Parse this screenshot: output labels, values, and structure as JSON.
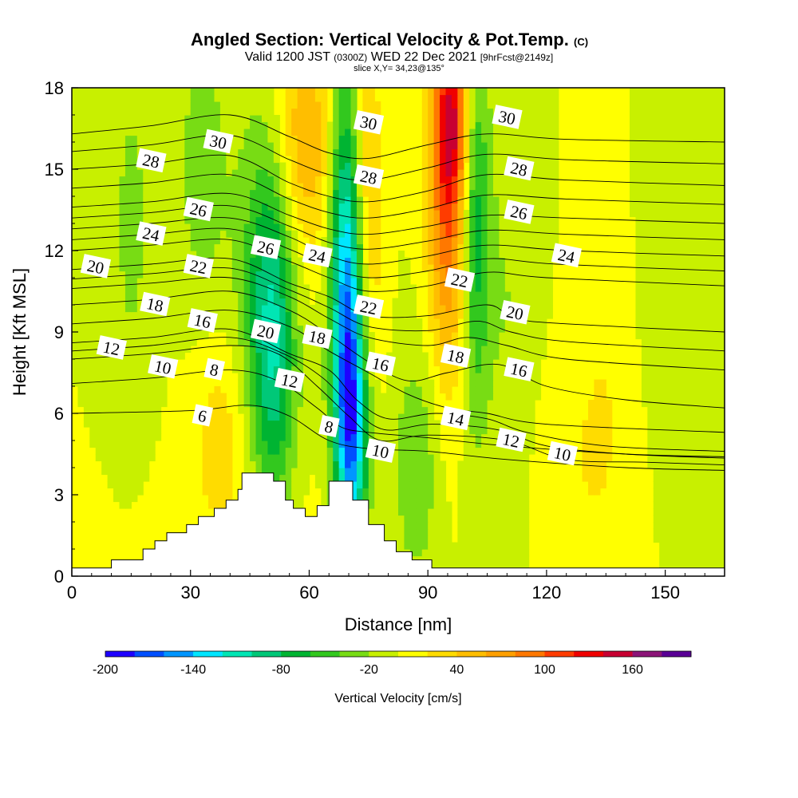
{
  "chart_data": {
    "type": "heatmap",
    "title": "Angled Section: Vertical Velocity & Pot.Temp.",
    "title_suffix": "(C)",
    "subtitle_parts": [
      "Valid 1200 JST",
      "(0300Z)",
      "WED 22 Dec 2021",
      "[9hrFcst@2149z]"
    ],
    "slice_line": "slice X,Y= 34,23@135°",
    "xlabel": "Distance [nm]",
    "ylabel": "Height [Kft MSL]",
    "xlim": [
      0,
      165
    ],
    "ylim": [
      0,
      18
    ],
    "x_ticks": [
      0,
      30,
      60,
      90,
      120,
      150
    ],
    "y_ticks": [
      0,
      3,
      6,
      9,
      12,
      15,
      18
    ],
    "colorbar": {
      "title": "Vertical Velocity [cm/s]",
      "min": -200,
      "max": 200,
      "step": 20,
      "tick_labels": [
        -200,
        -140,
        -80,
        -20,
        40,
        100,
        160
      ],
      "colors": [
        "#1e00ff",
        "#0050ff",
        "#0096ff",
        "#00e6ff",
        "#00e6b4",
        "#00c878",
        "#00b432",
        "#32c81e",
        "#78dc14",
        "#c8f000",
        "#ffff00",
        "#ffdc00",
        "#ffbe00",
        "#ffa000",
        "#ff7800",
        "#ff3c00",
        "#f00000",
        "#c80032",
        "#8c1478",
        "#5a0096"
      ]
    },
    "background_value": 0,
    "terrain_profile": [
      [
        0,
        0.3
      ],
      [
        10,
        0.3
      ],
      [
        10,
        0.6
      ],
      [
        18,
        0.6
      ],
      [
        18,
        1.0
      ],
      [
        21,
        1.0
      ],
      [
        21,
        1.3
      ],
      [
        24,
        1.3
      ],
      [
        24,
        1.6
      ],
      [
        29,
        1.6
      ],
      [
        29,
        1.9
      ],
      [
        32,
        1.9
      ],
      [
        32,
        2.2
      ],
      [
        36,
        2.2
      ],
      [
        36,
        2.5
      ],
      [
        39,
        2.5
      ],
      [
        39,
        2.8
      ],
      [
        42,
        2.8
      ],
      [
        42,
        3.2
      ],
      [
        43,
        3.2
      ],
      [
        43,
        3.8
      ],
      [
        51,
        3.8
      ],
      [
        51,
        3.5
      ],
      [
        54,
        3.5
      ],
      [
        54,
        2.8
      ],
      [
        56,
        2.8
      ],
      [
        56,
        2.5
      ],
      [
        59,
        2.5
      ],
      [
        59,
        2.2
      ],
      [
        62,
        2.2
      ],
      [
        62,
        2.6
      ],
      [
        65,
        2.6
      ],
      [
        65,
        3.5
      ],
      [
        71,
        3.5
      ],
      [
        71,
        2.8
      ],
      [
        75,
        2.8
      ],
      [
        75,
        1.9
      ],
      [
        79,
        1.9
      ],
      [
        79,
        1.3
      ],
      [
        82,
        1.3
      ],
      [
        82,
        0.9
      ],
      [
        86,
        0.9
      ],
      [
        86,
        0.6
      ],
      [
        91,
        0.6
      ],
      [
        91,
        0.3
      ],
      [
        165,
        0.3
      ]
    ],
    "velocity_features": [
      {
        "x": 51,
        "y": 8.5,
        "sx": 4,
        "sy": 4.5,
        "value": -80
      },
      {
        "x": 48,
        "y": 11,
        "sx": 5,
        "sy": 5,
        "value": -40
      },
      {
        "x": 70,
        "y": 9,
        "sx": 3,
        "sy": 4.5,
        "value": -140
      },
      {
        "x": 71,
        "y": 5,
        "sx": 3,
        "sy": 3,
        "value": -100
      },
      {
        "x": 69,
        "y": 15,
        "sx": 3,
        "sy": 4,
        "value": -60
      },
      {
        "x": 74,
        "y": 13,
        "sx": 3,
        "sy": 5,
        "value": 60
      },
      {
        "x": 59,
        "y": 16,
        "sx": 6,
        "sy": 3,
        "value": 60
      },
      {
        "x": 38,
        "y": 5.5,
        "sx": 6,
        "sy": 2.5,
        "value": 30
      },
      {
        "x": 95,
        "y": 14,
        "sx": 3.5,
        "sy": 4.5,
        "value": 100
      },
      {
        "x": 96,
        "y": 17,
        "sx": 3,
        "sy": 2,
        "value": 80
      },
      {
        "x": 102,
        "y": 13,
        "sx": 2.5,
        "sy": 5,
        "value": -70
      },
      {
        "x": 87,
        "y": 4,
        "sx": 4,
        "sy": 3,
        "value": -40
      },
      {
        "x": 33,
        "y": 15,
        "sx": 5,
        "sy": 4,
        "value": -30
      },
      {
        "x": 15,
        "y": 13,
        "sx": 4,
        "sy": 5,
        "value": -25
      },
      {
        "x": 110,
        "y": 10,
        "sx": 5,
        "sy": 5,
        "value": -20
      },
      {
        "x": 135,
        "y": 9,
        "sx": 5,
        "sy": 6,
        "value": 15
      },
      {
        "x": 128,
        "y": 4,
        "sx": 8,
        "sy": 3,
        "value": 15
      },
      {
        "x": 150,
        "y": 13,
        "sx": 6,
        "sy": 5,
        "value": -12
      },
      {
        "x": 45,
        "y": 1.5,
        "sx": 20,
        "sy": 2,
        "value": 10
      }
    ],
    "isentropes": [
      {
        "theta": 6,
        "points": [
          [
            0,
            6.0
          ],
          [
            30,
            6.1
          ],
          [
            45,
            6.3
          ],
          [
            55,
            5.9
          ],
          [
            65,
            5.0
          ],
          [
            75,
            4.7
          ],
          [
            90,
            4.6
          ],
          [
            110,
            4.3
          ],
          [
            140,
            4.0
          ],
          [
            165,
            3.9
          ]
        ]
      },
      {
        "theta": 8,
        "points": [
          [
            0,
            7.1
          ],
          [
            20,
            7.3
          ],
          [
            40,
            7.6
          ],
          [
            52,
            7.2
          ],
          [
            62,
            6.2
          ],
          [
            68,
            5.5
          ],
          [
            75,
            5.3
          ],
          [
            90,
            5.1
          ],
          [
            110,
            4.8
          ],
          [
            140,
            4.5
          ],
          [
            165,
            4.4
          ]
        ]
      },
      {
        "theta": 10,
        "points": [
          [
            0,
            8.0
          ],
          [
            20,
            8.2
          ],
          [
            40,
            8.5
          ],
          [
            52,
            8.2
          ],
          [
            62,
            7.0
          ],
          [
            70,
            5.9
          ],
          [
            78,
            5.0
          ],
          [
            90,
            5.2
          ],
          [
            110,
            5.0
          ],
          [
            125,
            4.3
          ],
          [
            145,
            4.2
          ],
          [
            165,
            4.1
          ]
        ]
      },
      {
        "theta": 12,
        "points": [
          [
            0,
            8.6
          ],
          [
            20,
            8.8
          ],
          [
            40,
            9.1
          ],
          [
            55,
            8.2
          ],
          [
            65,
            7.6
          ],
          [
            72,
            6.5
          ],
          [
            80,
            5.8
          ],
          [
            92,
            6.0
          ],
          [
            105,
            5.8
          ],
          [
            115,
            5.3
          ],
          [
            135,
            4.8
          ],
          [
            165,
            4.6
          ]
        ]
      },
      {
        "theta": 14,
        "points": [
          [
            0,
            9.3
          ],
          [
            20,
            9.5
          ],
          [
            40,
            9.8
          ],
          [
            55,
            9.2
          ],
          [
            65,
            8.3
          ],
          [
            75,
            7.5
          ],
          [
            85,
            6.7
          ],
          [
            95,
            6.2
          ],
          [
            105,
            6.0
          ],
          [
            120,
            5.6
          ],
          [
            165,
            5.3
          ]
        ]
      },
      {
        "theta": 16,
        "points": [
          [
            0,
            10.0
          ],
          [
            20,
            10.2
          ],
          [
            40,
            10.5
          ],
          [
            55,
            9.8
          ],
          [
            65,
            8.9
          ],
          [
            75,
            7.9
          ],
          [
            85,
            7.2
          ],
          [
            95,
            7.5
          ],
          [
            108,
            7.8
          ],
          [
            120,
            7.0
          ],
          [
            140,
            6.5
          ],
          [
            165,
            6.2
          ]
        ]
      },
      {
        "theta": 18,
        "points": [
          [
            0,
            10.6
          ],
          [
            20,
            10.8
          ],
          [
            40,
            11.0
          ],
          [
            55,
            10.3
          ],
          [
            65,
            9.5
          ],
          [
            75,
            8.8
          ],
          [
            90,
            8.5
          ],
          [
            100,
            8.8
          ],
          [
            110,
            8.5
          ],
          [
            125,
            8.0
          ],
          [
            165,
            7.6
          ]
        ]
      },
      {
        "theta": 20,
        "points": [
          [
            0,
            11.3
          ],
          [
            20,
            11.5
          ],
          [
            40,
            11.7
          ],
          [
            55,
            10.8
          ],
          [
            65,
            10.3
          ],
          [
            75,
            9.6
          ],
          [
            90,
            9.6
          ],
          [
            105,
            10.0
          ],
          [
            112,
            9.5
          ],
          [
            125,
            9.3
          ],
          [
            165,
            9.0
          ]
        ]
      },
      {
        "theta": 22,
        "points": [
          [
            0,
            12.0
          ],
          [
            20,
            12.2
          ],
          [
            40,
            12.4
          ],
          [
            55,
            11.6
          ],
          [
            65,
            11.0
          ],
          [
            75,
            10.5
          ],
          [
            90,
            10.7
          ],
          [
            105,
            11.2
          ],
          [
            120,
            11.0
          ],
          [
            165,
            10.7
          ]
        ]
      },
      {
        "theta": 24,
        "points": [
          [
            0,
            12.8
          ],
          [
            20,
            13.0
          ],
          [
            40,
            13.2
          ],
          [
            55,
            12.5
          ],
          [
            65,
            11.8
          ],
          [
            75,
            11.5
          ],
          [
            90,
            11.8
          ],
          [
            105,
            12.2
          ],
          [
            125,
            12.0
          ],
          [
            165,
            11.8
          ]
        ]
      },
      {
        "theta": 26,
        "points": [
          [
            0,
            13.6
          ],
          [
            20,
            13.8
          ],
          [
            40,
            14.1
          ],
          [
            55,
            13.3
          ],
          [
            65,
            12.8
          ],
          [
            75,
            12.6
          ],
          [
            90,
            12.9
          ],
          [
            105,
            13.3
          ],
          [
            125,
            13.2
          ],
          [
            165,
            13.0
          ]
        ]
      },
      {
        "theta": 28,
        "points": [
          [
            0,
            15.0
          ],
          [
            20,
            15.2
          ],
          [
            40,
            15.5
          ],
          [
            55,
            14.5
          ],
          [
            65,
            14.0
          ],
          [
            75,
            13.8
          ],
          [
            90,
            14.2
          ],
          [
            105,
            14.8
          ],
          [
            125,
            14.6
          ],
          [
            165,
            14.4
          ]
        ]
      },
      {
        "theta": 30,
        "points": [
          [
            0,
            16.3
          ],
          [
            20,
            16.6
          ],
          [
            40,
            17.0
          ],
          [
            55,
            16.2
          ],
          [
            65,
            15.6
          ],
          [
            75,
            15.4
          ],
          [
            90,
            15.9
          ],
          [
            105,
            16.3
          ],
          [
            125,
            16.1
          ],
          [
            165,
            16.0
          ]
        ]
      }
    ],
    "contour_labels": [
      {
        "text": "28",
        "x": 20,
        "y": 15.3
      },
      {
        "text": "30",
        "x": 37,
        "y": 16.0
      },
      {
        "text": "30",
        "x": 75,
        "y": 16.7
      },
      {
        "text": "30",
        "x": 110,
        "y": 16.9
      },
      {
        "text": "28",
        "x": 75,
        "y": 14.7
      },
      {
        "text": "28",
        "x": 113,
        "y": 15.0
      },
      {
        "text": "26",
        "x": 32,
        "y": 13.5
      },
      {
        "text": "26",
        "x": 113,
        "y": 13.4
      },
      {
        "text": "24",
        "x": 20,
        "y": 12.6
      },
      {
        "text": "24",
        "x": 125,
        "y": 11.8
      },
      {
        "text": "26",
        "x": 49,
        "y": 12.1
      },
      {
        "text": "24",
        "x": 62,
        "y": 11.8
      },
      {
        "text": "20",
        "x": 6,
        "y": 11.4
      },
      {
        "text": "22",
        "x": 32,
        "y": 11.4
      },
      {
        "text": "22",
        "x": 98,
        "y": 10.9
      },
      {
        "text": "22",
        "x": 75,
        "y": 9.9
      },
      {
        "text": "20",
        "x": 112,
        "y": 9.7
      },
      {
        "text": "18",
        "x": 21,
        "y": 10.0
      },
      {
        "text": "16",
        "x": 33,
        "y": 9.4
      },
      {
        "text": "20",
        "x": 49,
        "y": 9.0
      },
      {
        "text": "18",
        "x": 62,
        "y": 8.8
      },
      {
        "text": "12",
        "x": 10,
        "y": 8.4
      },
      {
        "text": "10",
        "x": 23,
        "y": 7.7
      },
      {
        "text": "8",
        "x": 36,
        "y": 7.6
      },
      {
        "text": "16",
        "x": 78,
        "y": 7.8
      },
      {
        "text": "18",
        "x": 97,
        "y": 8.1
      },
      {
        "text": "16",
        "x": 113,
        "y": 7.6
      },
      {
        "text": "12",
        "x": 55,
        "y": 7.2
      },
      {
        "text": "6",
        "x": 33,
        "y": 5.9
      },
      {
        "text": "8",
        "x": 65,
        "y": 5.5
      },
      {
        "text": "14",
        "x": 97,
        "y": 5.8
      },
      {
        "text": "12",
        "x": 111,
        "y": 5.0
      },
      {
        "text": "10",
        "x": 78,
        "y": 4.6
      },
      {
        "text": "10",
        "x": 124,
        "y": 4.5
      }
    ]
  }
}
